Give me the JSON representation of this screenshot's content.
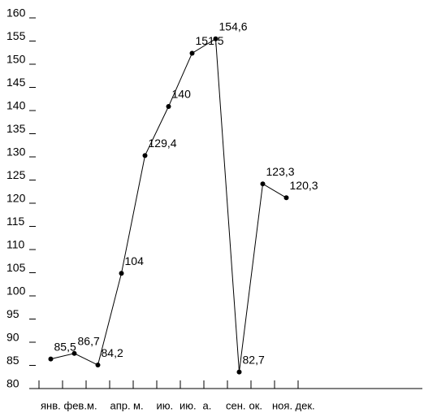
{
  "chart_data": {
    "type": "line",
    "categories": [
      "янв.",
      "фев.",
      "м.",
      "апр.",
      "м.",
      "ию.",
      "ию.",
      "а.",
      "сен.",
      "ок.",
      "ноя.",
      "дек."
    ],
    "values": [
      85.5,
      86.7,
      84.2,
      104,
      129.4,
      140,
      151.5,
      154.6,
      82.7,
      123.3,
      120.3,
      null
    ],
    "value_labels": [
      "85,5",
      "86,7",
      "84,2",
      "104",
      "129,4",
      "140",
      "151,5",
      "154,6",
      "82,7",
      "123,3",
      "120,3",
      null
    ],
    "color": "#000000",
    "ylim": [
      80,
      160
    ],
    "yticks": [
      80,
      85,
      90,
      95,
      100,
      105,
      110,
      115,
      120,
      125,
      130,
      135,
      140,
      145,
      150,
      155,
      160
    ]
  }
}
